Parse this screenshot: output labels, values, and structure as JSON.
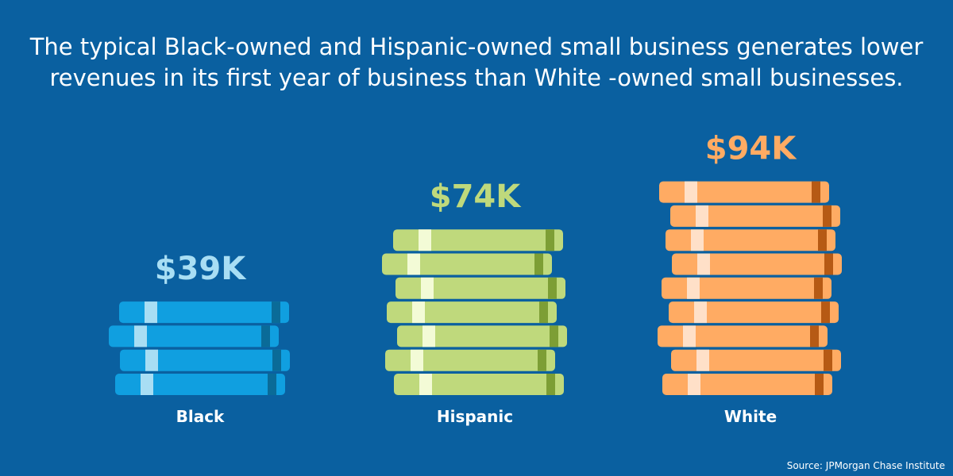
{
  "headline": {
    "line1": "The typical Black-owned and Hispanic-owned small business generates lower",
    "line2": "revenues in its first year of business than White -owned small businesses."
  },
  "source": "Source: JPMorgan Chase Institute",
  "colors": {
    "background": "#0a60a0",
    "Black": {
      "bill": "#109fe0",
      "stripe": "#a8def4",
      "band": "#0a6b98",
      "label": "#a8def4"
    },
    "Hispanic": {
      "bill": "#bfd97c",
      "stripe": "#f3fbd6",
      "band": "#7d9e35",
      "label": "#bfd97c"
    },
    "White": {
      "bill": "#ffab63",
      "stripe": "#ffe0c8",
      "band": "#b65a14",
      "label": "#ffab63"
    }
  },
  "chart_data": {
    "type": "bar",
    "title": "The typical Black-owned and Hispanic-owned small business generates lower revenues in its first year of business than White -owned small businesses.",
    "categories": [
      "Black",
      "Hispanic",
      "White"
    ],
    "values": [
      39,
      74,
      94
    ],
    "value_labels": [
      "$39K",
      "$74K",
      "$94K"
    ],
    "xlabel": "",
    "ylabel": ""
  }
}
